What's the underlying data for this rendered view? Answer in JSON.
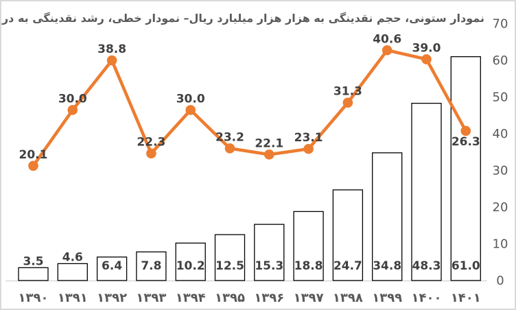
{
  "window": {
    "background": "#FFFFFF",
    "border_color": "#D9D9D9"
  },
  "chart_data": {
    "type": "combo-bar-line",
    "title": "نمودار ستونی، حجم نقدینگی به هزار هزار میلیارد ریال– نمودار خطی، رشد نقدینگی به درصد",
    "categories": [
      "۱۳۹۰",
      "۱۳۹۱",
      "۱۳۹۲",
      "۱۳۹۳",
      "۱۳۹۴",
      "۱۳۹۵",
      "۱۳۹۶",
      "۱۳۹۷",
      "۱۳۹۸",
      "۱۳۹۹",
      "۱۴۰۰",
      "۱۴۰۱"
    ],
    "series": [
      {
        "name": "bar",
        "type": "bar",
        "axis": "right-primary",
        "values": [
          3.5,
          4.6,
          6.4,
          7.8,
          10.2,
          12.5,
          15.3,
          18.8,
          24.7,
          34.8,
          48.3,
          61.0
        ],
        "labels": [
          "3.5",
          "4.6",
          "6.4",
          "7.8",
          "10.2",
          "12.5",
          "15.3",
          "18.8",
          "24.7",
          "34.8",
          "48.3",
          "61.0"
        ]
      },
      {
        "name": "line",
        "type": "line",
        "axis": "hidden-secondary",
        "values": [
          20.1,
          30.0,
          38.8,
          22.3,
          30.0,
          23.2,
          22.1,
          23.1,
          31.3,
          40.6,
          39.0,
          26.3
        ],
        "labels": [
          "20.1",
          "30.0",
          "38.8",
          "22.3",
          "30.0",
          "23.2",
          "22.1",
          "23.1",
          "31.3",
          "40.6",
          "39.0",
          "26.3"
        ]
      }
    ],
    "y_axis_right": {
      "tick_values": [
        0,
        10,
        20,
        30,
        40,
        50,
        60,
        70
      ],
      "tick_labels": [
        "0",
        "10",
        "20",
        "30",
        "40",
        "50",
        "60",
        "70"
      ],
      "range": [
        0,
        70
      ]
    },
    "secondary_axis": {
      "visible": false,
      "range": [
        0,
        45
      ]
    },
    "grid": false,
    "legend": "none",
    "colors": {
      "line": "#ED7D31",
      "marker": "#ED7D31",
      "bar_fill": "#FFFFFF",
      "bar_stroke": "#000000",
      "data_label": "#404040",
      "axis_label": "#595959",
      "axis_line": "#D9D9D9",
      "title": "#595959"
    }
  }
}
